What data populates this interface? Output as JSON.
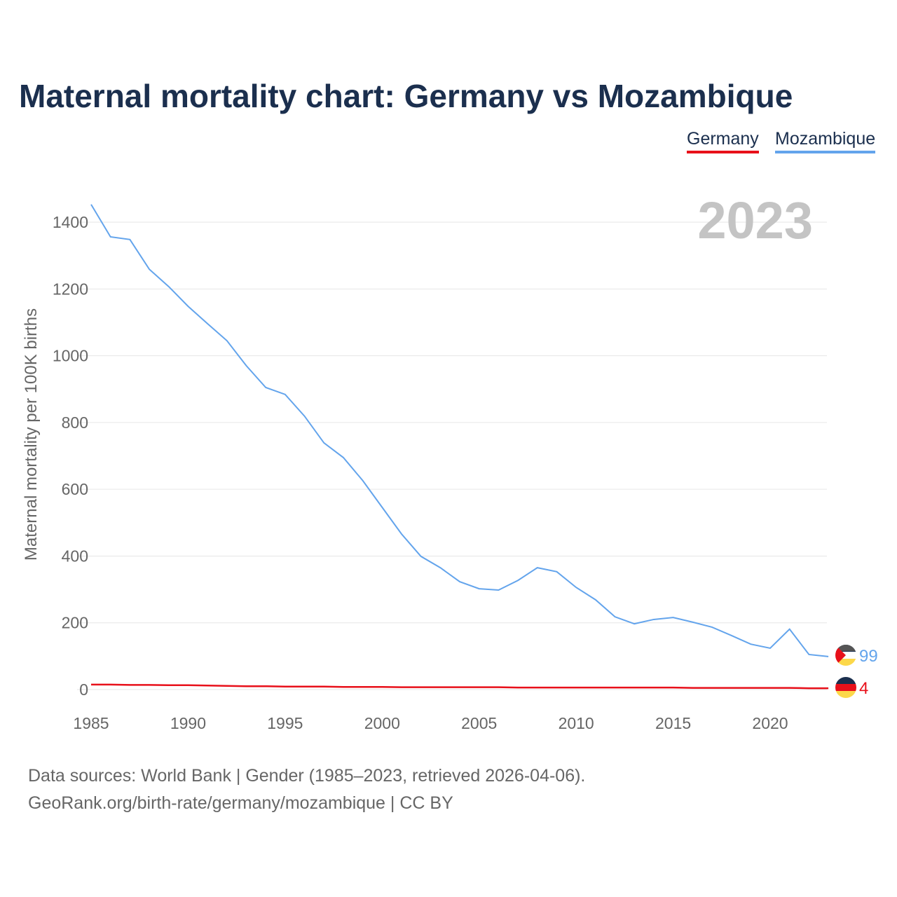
{
  "title": "Maternal mortality chart: Germany vs Mozambique",
  "footer": {
    "line1": "Data sources: World Bank | Gender (1985–2023, retrieved 2026-04-06).",
    "line2": "GeoRank.org/birth-rate/germany/mozambique | CC BY"
  },
  "chart_data": {
    "type": "line",
    "title": "Maternal mortality chart: Germany vs Mozambique",
    "ylabel": "Maternal mortality per 100K births",
    "xlabel": "",
    "year_label": "2023",
    "xlim": [
      1985,
      2023
    ],
    "ylim": [
      0,
      1500
    ],
    "xticks": [
      1985,
      1990,
      1995,
      2000,
      2005,
      2010,
      2015,
      2020
    ],
    "yticks": [
      0,
      200,
      400,
      600,
      800,
      1000,
      1200,
      1400
    ],
    "legend_position": "top-right",
    "x": [
      1985,
      1986,
      1987,
      1988,
      1989,
      1990,
      1991,
      1992,
      1993,
      1994,
      1995,
      1996,
      1997,
      1998,
      1999,
      2000,
      2001,
      2002,
      2003,
      2004,
      2005,
      2006,
      2007,
      2008,
      2009,
      2010,
      2011,
      2012,
      2013,
      2014,
      2015,
      2016,
      2017,
      2018,
      2019,
      2020,
      2021,
      2022,
      2023
    ],
    "series": [
      {
        "name": "Germany",
        "color": "#e8101a",
        "end_label": "4",
        "values": [
          15,
          15,
          14,
          14,
          13,
          13,
          12,
          11,
          10,
          10,
          9,
          9,
          9,
          8,
          8,
          8,
          7,
          7,
          7,
          7,
          7,
          7,
          6,
          6,
          6,
          6,
          6,
          6,
          6,
          6,
          6,
          5,
          5,
          5,
          5,
          5,
          5,
          4,
          4
        ]
      },
      {
        "name": "Mozambique",
        "color": "#63a4ec",
        "end_label": "99",
        "values": [
          1453,
          1356,
          1348,
          1259,
          1207,
          1148,
          1096,
          1045,
          970,
          905,
          884,
          819,
          739,
          695,
          626,
          546,
          466,
          399,
          365,
          323,
          302,
          298,
          327,
          365,
          353,
          306,
          269,
          218,
          197,
          210,
          216,
          202,
          187,
          162,
          136,
          124,
          181,
          105,
          99
        ]
      }
    ]
  }
}
